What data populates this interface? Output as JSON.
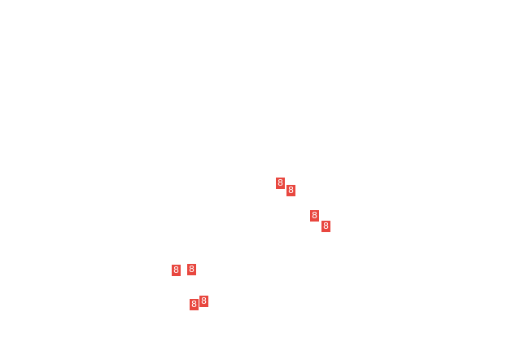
{
  "map": {
    "marker_color": "#e8473f",
    "markers": [
      {
        "label": "8"
      },
      {
        "label": "8"
      },
      {
        "label": "8"
      },
      {
        "label": "8"
      },
      {
        "label": "8"
      },
      {
        "label": "8"
      },
      {
        "label": "8"
      },
      {
        "label": "8"
      }
    ]
  }
}
